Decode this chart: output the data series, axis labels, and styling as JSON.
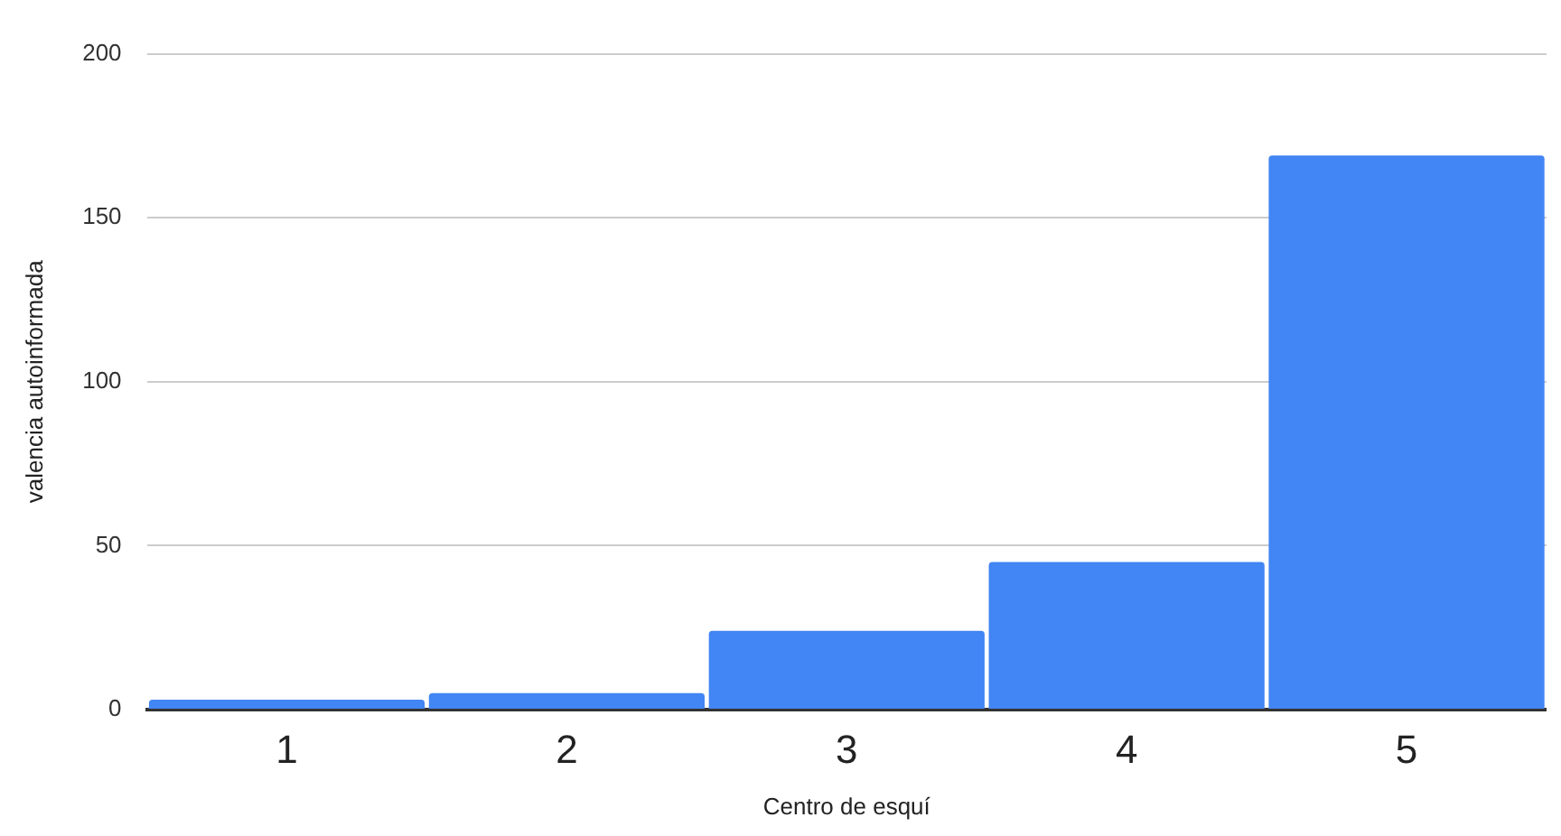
{
  "chart_data": {
    "type": "bar",
    "xlabel": "Centro de esquí",
    "ylabel": "valencia autoinformada",
    "categories": [
      "1",
      "2",
      "3",
      "4",
      "5"
    ],
    "values": [
      3,
      5,
      24,
      45,
      169
    ],
    "color": "#4285f4",
    "ylim": [
      0,
      200
    ],
    "yticks": [
      0,
      50,
      100,
      150,
      200
    ],
    "grid": "y"
  }
}
